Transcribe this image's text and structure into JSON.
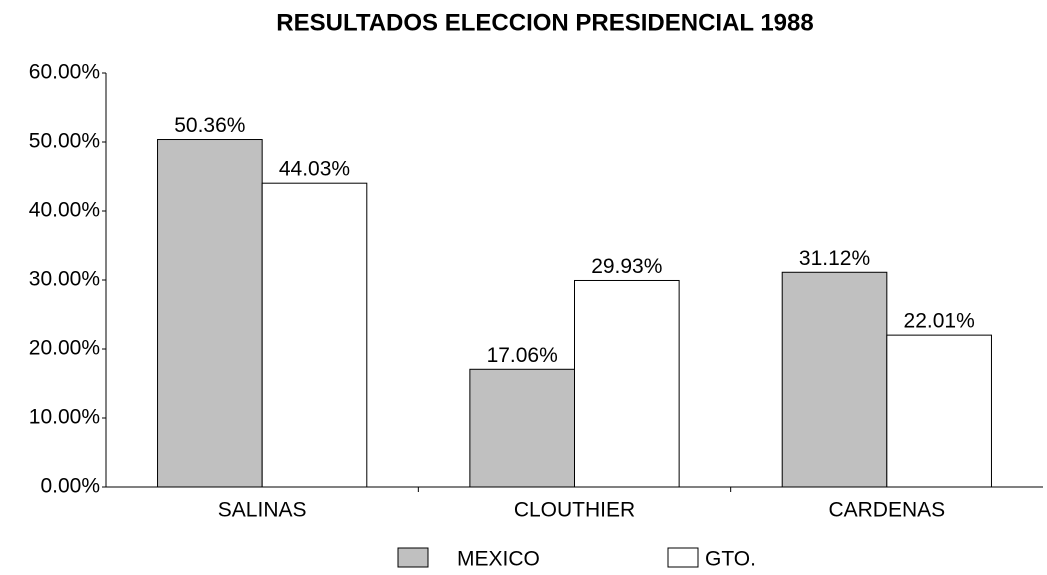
{
  "chart_data": {
    "type": "bar",
    "title": "RESULTADOS ELECCION PRESIDENCIAL 1988",
    "categories": [
      "SALINAS",
      "CLOUTHIER",
      "CARDENAS"
    ],
    "series": [
      {
        "name": "MEXICO",
        "color": "#c0c0c0",
        "values": [
          50.36,
          17.06,
          31.12
        ],
        "value_labels": [
          "50.36%",
          "17.06%",
          "31.12%"
        ]
      },
      {
        "name": "GTO.",
        "color": "#ffffff",
        "values": [
          44.03,
          29.93,
          22.01
        ],
        "value_labels": [
          "44.03%",
          "29.93%",
          "22.01%"
        ]
      }
    ],
    "ylim": [
      0,
      60
    ],
    "yticks": [
      {
        "value": 0,
        "label": "0.00%"
      },
      {
        "value": 10,
        "label": "10.00%"
      },
      {
        "value": 20,
        "label": "20.00%"
      },
      {
        "value": 30,
        "label": "30.00%"
      },
      {
        "value": 40,
        "label": "40.00%"
      },
      {
        "value": 50,
        "label": "50.00%"
      },
      {
        "value": 60,
        "label": "60.00%"
      }
    ],
    "legend": "bottom"
  }
}
